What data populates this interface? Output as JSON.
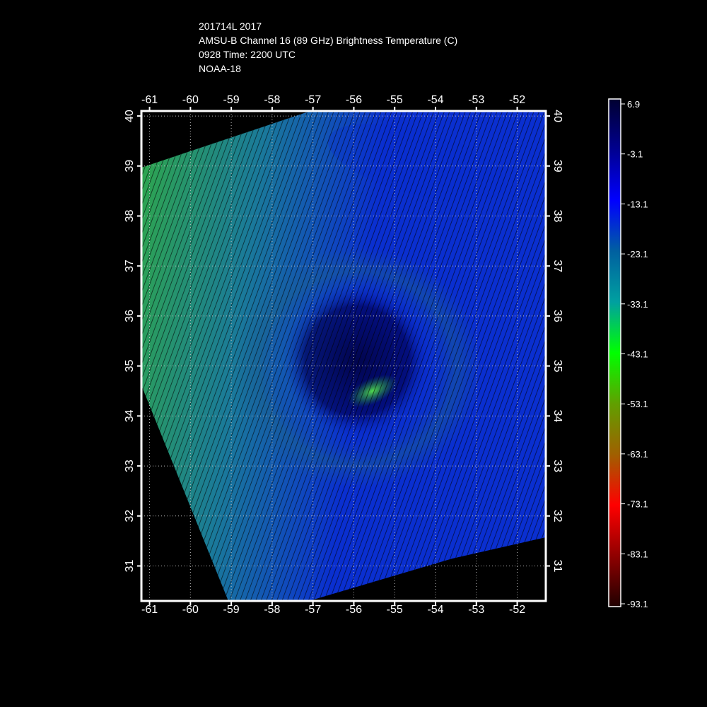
{
  "header": {
    "line1": "201714L 2017",
    "line2": "AMSU-B Channel 16 (89 GHz) Brightness Temperature (C)",
    "line3": "0928 Time: 2200 UTC",
    "line4": "NOAA-18"
  },
  "map": {
    "lon_ticks": [
      "-61",
      "-60",
      "-59",
      "-58",
      "-57",
      "-56",
      "-55",
      "-54",
      "-53",
      "-52"
    ],
    "lat_ticks": [
      "40",
      "39",
      "38",
      "37",
      "36",
      "35",
      "34",
      "33",
      "32",
      "31"
    ],
    "lon_range": [
      -61.2,
      -51.3
    ],
    "lat_range": [
      30.3,
      40.1
    ],
    "grid": true,
    "colors": {
      "frame": "#ffffff",
      "grid": "#bbbbbb",
      "cold_core": "#000066",
      "scene_blue": "#0a2fd0",
      "scene_teal": "#1a7a9a",
      "scene_green": "#2fa84a",
      "eye_green": "#3fcf3f"
    }
  },
  "colorbar": {
    "labels": [
      "6.9",
      "-3.1",
      "-13.1",
      "-23.1",
      "-33.1",
      "-43.1",
      "-53.1",
      "-63.1",
      "-73.1",
      "-83.1",
      "-93.1"
    ],
    "stops": [
      "#000030",
      "#000090",
      "#0000ff",
      "#0060a0",
      "#00a0a0",
      "#00ff00",
      "#60a000",
      "#a06000",
      "#ff0000",
      "#900000",
      "#200000"
    ]
  }
}
